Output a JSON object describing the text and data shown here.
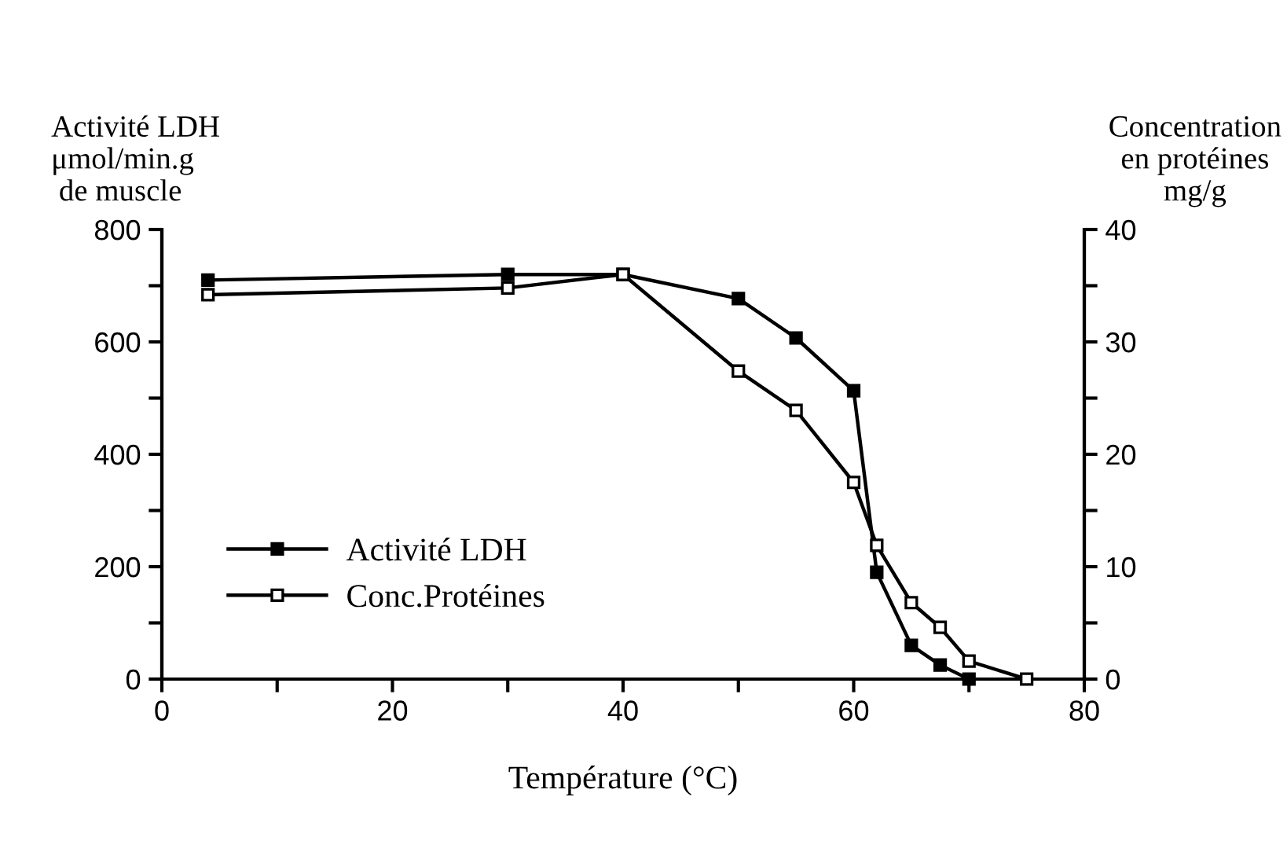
{
  "chart_data": {
    "type": "line",
    "xlabel": "Température (°C)",
    "ylabel": "Activité LDH\nμmol/min.g\n de muscle",
    "y2label": "Concentration\nen protéines\nmg/g",
    "marker": "square",
    "line_style": "solid",
    "legend": "bottom left",
    "grid": false,
    "xlim": [
      0,
      80
    ],
    "xticks": [
      0,
      {
        "value": 10,
        "label": null
      },
      20,
      {
        "value": 30,
        "label": null
      },
      40,
      {
        "value": 50,
        "label": null
      },
      60,
      {
        "value": 70,
        "label": null
      },
      80
    ],
    "ylim": [
      0,
      800
    ],
    "yticks": [
      0,
      {
        "value": 100,
        "label": null
      },
      200,
      {
        "value": 300,
        "label": null
      },
      400,
      {
        "value": 500,
        "label": null
      },
      600,
      {
        "value": 700,
        "label": null
      },
      800
    ],
    "y2lim": [
      0,
      40
    ],
    "y2ticks": [
      0,
      {
        "value": 5,
        "label": null
      },
      10,
      {
        "value": 15,
        "label": null
      },
      20,
      {
        "value": 25,
        "label": null
      },
      30,
      {
        "value": 35,
        "label": null
      },
      40
    ],
    "series": [
      {
        "name": "Activité LDH",
        "color": "#000000",
        "x": [
          4,
          30,
          40,
          50,
          55,
          60,
          62,
          65,
          67.5,
          70
        ],
        "values": [
          710,
          720,
          720,
          677,
          607,
          513,
          190,
          60,
          25,
          0
        ]
      },
      {
        "name": "Conc.Protéines",
        "color": "#000000",
        "axis": "y2",
        "x": [
          4,
          30,
          40,
          50,
          55,
          60,
          62,
          65,
          67.5,
          70,
          75
        ],
        "values": [
          34.2,
          34.8,
          36,
          27.4,
          23.9,
          17.5,
          11.9,
          6.8,
          4.6,
          1.6,
          0
        ]
      }
    ]
  }
}
